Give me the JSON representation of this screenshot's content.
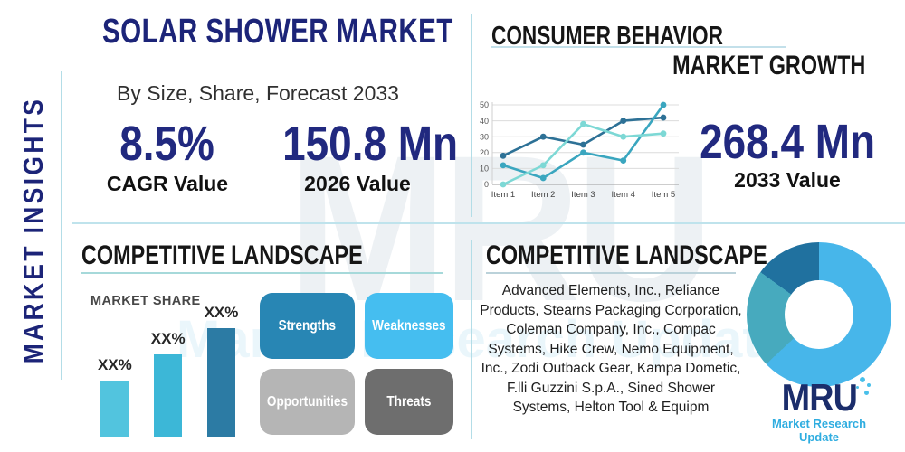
{
  "watermark": {
    "text": "MRU",
    "subtext": "Market Research Update"
  },
  "sidebar": {
    "label": "MARKET INSIGHTS"
  },
  "header": {
    "title": "SOLAR SHOWER MARKET",
    "subtitle": "By Size, Share, Forecast 2033"
  },
  "stats": {
    "cagr": {
      "value": "8.5%",
      "label": "CAGR Value"
    },
    "v2026": {
      "value": "150.8 Mn",
      "label": "2026 Value"
    },
    "v2033": {
      "value": "268.4 Mn",
      "label": "2033 Value"
    }
  },
  "sections": {
    "consumer_behavior": "CONSUMER BEHAVIOR",
    "market_growth": "MARKET GROWTH",
    "competitive_left": "COMPETITIVE LANDSCAPE",
    "competitive_right": "COMPETITIVE LANDSCAPE"
  },
  "swot": {
    "items": [
      {
        "label": "Strengths",
        "color": "#2886b4"
      },
      {
        "label": "Weaknesses",
        "color": "#45bef0"
      },
      {
        "label": "Opportunities",
        "color": "#b5b5b5"
      },
      {
        "label": "Threats",
        "color": "#6e6e6e"
      }
    ]
  },
  "companies": {
    "text": "Advanced Elements, Inc., Reliance Products, Stearns Packaging Corporation, Coleman Company, Inc., Compac Systems, Hike Crew, Nemo Equipment, Inc., Zodi Outback Gear, Kampa Dometic, F.lli Guzzini S.p.A., Sined Shower Systems, Helton Tool & Equipm"
  },
  "logo": {
    "text": "MRU",
    "tagline": "Market Research Update"
  },
  "colors": {
    "navy": "#1c2478",
    "accent_line": "#b3dde7"
  },
  "chart_data": [
    {
      "type": "line",
      "section": "CONSUMER BEHAVIOR",
      "categories": [
        "Item 1",
        "Item 2",
        "Item 3",
        "Item 4",
        "Item 5"
      ],
      "series": [
        {
          "name": "series-dark-blue",
          "color": "#2d7196",
          "values": [
            18,
            30,
            25,
            40,
            42
          ]
        },
        {
          "name": "series-teal",
          "color": "#3aa6bf",
          "values": [
            12,
            4,
            20,
            15,
            50
          ]
        },
        {
          "name": "series-light-aqua",
          "color": "#7dd8d5",
          "values": [
            0,
            12,
            38,
            30,
            32
          ]
        }
      ],
      "ylim": [
        0,
        50
      ],
      "yticks": [
        0,
        10,
        20,
        30,
        40,
        50
      ],
      "grid": true,
      "legend": "none"
    },
    {
      "type": "bar",
      "title": "MARKET SHARE",
      "categories": [
        "",
        "",
        ""
      ],
      "values": [
        26,
        38,
        50
      ],
      "data_labels": [
        "XX%",
        "XX%",
        "XX%"
      ],
      "colors": [
        "#52c4de",
        "#3cb7d7",
        "#2c7ba4"
      ],
      "ylim": [
        0,
        50
      ],
      "note": "values are relative heights; actual percentages masked as XX% in source"
    },
    {
      "type": "pie",
      "donut": true,
      "slices": [
        {
          "name": "slice-light-blue",
          "value": 63,
          "color": "#47b6ea"
        },
        {
          "name": "slice-teal",
          "value": 22,
          "color": "#47aabe"
        },
        {
          "name": "slice-dark-blue",
          "value": 15,
          "color": "#20719f"
        }
      ],
      "legend": "none"
    }
  ]
}
